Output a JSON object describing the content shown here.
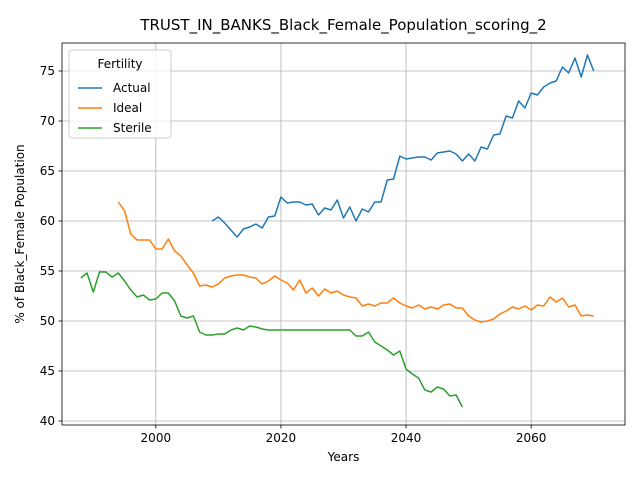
{
  "chart_data": {
    "type": "line",
    "title": "TRUST_IN_BANKS_Black_Female_Population_scoring_2",
    "xlabel": "Years",
    "ylabel": "% of Black_Female Population",
    "xlim": [
      1985,
      2075
    ],
    "ylim": [
      39.6,
      77.8
    ],
    "xticks": [
      2000,
      2020,
      2040,
      2060
    ],
    "yticks": [
      40,
      45,
      50,
      55,
      60,
      65,
      70,
      75
    ],
    "grid": true,
    "legend": {
      "title": "Fertility",
      "placement": "top-left"
    },
    "series": [
      {
        "name": "Actual",
        "color": "#1f77b4",
        "x": [
          2009,
          2010,
          2011,
          2012,
          2013,
          2014,
          2015,
          2016,
          2017,
          2018,
          2019,
          2020,
          2021,
          2022,
          2023,
          2024,
          2025,
          2026,
          2027,
          2028,
          2029,
          2030,
          2031,
          2032,
          2033,
          2034,
          2035,
          2036,
          2037,
          2038,
          2039,
          2040,
          2041,
          2042,
          2043,
          2044,
          2045,
          2046,
          2047,
          2048,
          2049,
          2050,
          2051,
          2052,
          2053,
          2054,
          2055,
          2056,
          2057,
          2058,
          2059,
          2060,
          2061,
          2062,
          2063,
          2064,
          2065,
          2066,
          2067,
          2068,
          2069,
          2070
        ],
        "y": [
          60.0,
          60.4,
          59.8,
          59.1,
          58.4,
          59.2,
          59.4,
          59.7,
          59.3,
          60.4,
          60.5,
          62.4,
          61.8,
          61.9,
          61.9,
          61.6,
          61.7,
          60.6,
          61.3,
          61.1,
          62.1,
          60.3,
          61.4,
          60.0,
          61.2,
          60.9,
          61.9,
          61.9,
          64.1,
          64.2,
          66.5,
          66.2,
          66.3,
          66.4,
          66.4,
          66.1,
          66.8,
          66.9,
          67.0,
          66.7,
          66.0,
          66.7,
          66.0,
          67.4,
          67.2,
          68.6,
          68.7,
          70.5,
          70.3,
          72.0,
          71.3,
          72.8,
          72.6,
          73.4,
          73.8,
          74.0,
          75.4,
          74.8,
          76.3,
          74.4,
          76.6,
          75.0
        ]
      },
      {
        "name": "Ideal",
        "color": "#ff7f0e",
        "x": [
          1994,
          1995,
          1996,
          1997,
          1998,
          1999,
          2000,
          2001,
          2002,
          2003,
          2004,
          2005,
          2006,
          2007,
          2008,
          2009,
          2010,
          2011,
          2012,
          2013,
          2014,
          2015,
          2016,
          2017,
          2018,
          2019,
          2020,
          2021,
          2022,
          2023,
          2024,
          2025,
          2026,
          2027,
          2028,
          2029,
          2030,
          2031,
          2032,
          2033,
          2034,
          2035,
          2036,
          2037,
          2038,
          2039,
          2040,
          2041,
          2042,
          2043,
          2044,
          2045,
          2046,
          2047,
          2048,
          2049,
          2050,
          2051,
          2052,
          2053,
          2054,
          2055,
          2056,
          2057,
          2058,
          2059,
          2060,
          2061,
          2062,
          2063,
          2064,
          2065,
          2066,
          2067,
          2068,
          2069,
          2070
        ],
        "y": [
          61.9,
          61.0,
          58.7,
          58.1,
          58.1,
          58.1,
          57.2,
          57.2,
          58.2,
          57.0,
          56.5,
          55.6,
          54.8,
          53.5,
          53.6,
          53.4,
          53.7,
          54.3,
          54.5,
          54.6,
          54.6,
          54.4,
          54.3,
          53.7,
          54.0,
          54.5,
          54.1,
          53.8,
          53.1,
          54.1,
          52.8,
          53.3,
          52.5,
          53.2,
          52.8,
          53.0,
          52.6,
          52.4,
          52.3,
          51.5,
          51.7,
          51.5,
          51.8,
          51.8,
          52.3,
          51.8,
          51.5,
          51.3,
          51.6,
          51.2,
          51.4,
          51.2,
          51.6,
          51.7,
          51.3,
          51.3,
          50.5,
          50.1,
          49.9,
          50.0,
          50.2,
          50.7,
          51.0,
          51.4,
          51.2,
          51.5,
          51.1,
          51.6,
          51.5,
          52.4,
          51.9,
          52.3,
          51.4,
          51.6,
          50.5,
          50.6,
          50.5
        ]
      },
      {
        "name": "Sterile",
        "color": "#2ca02c",
        "x": [
          1988,
          1989,
          1990,
          1991,
          1992,
          1993,
          1994,
          1995,
          1996,
          1997,
          1998,
          1999,
          2000,
          2001,
          2002,
          2003,
          2004,
          2005,
          2006,
          2007,
          2008,
          2009,
          2010,
          2011,
          2012,
          2013,
          2014,
          2015,
          2016,
          2017,
          2018,
          2019,
          2020,
          2021,
          2022,
          2023,
          2024,
          2025,
          2026,
          2027,
          2028,
          2029,
          2030,
          2031,
          2032,
          2033,
          2034,
          2035,
          2036,
          2037,
          2038,
          2039,
          2040,
          2041,
          2042,
          2043,
          2044,
          2045,
          2046,
          2047,
          2048,
          2049
        ],
        "y": [
          54.3,
          54.8,
          52.9,
          54.9,
          54.9,
          54.4,
          54.8,
          54.0,
          53.1,
          52.4,
          52.6,
          52.1,
          52.2,
          52.8,
          52.8,
          52.0,
          50.5,
          50.3,
          50.5,
          48.9,
          48.6,
          48.6,
          48.7,
          48.7,
          49.1,
          49.3,
          49.1,
          49.5,
          49.4,
          49.2,
          49.1,
          49.1,
          49.1,
          49.1,
          49.1,
          49.1,
          49.1,
          49.1,
          49.1,
          49.1,
          49.1,
          49.1,
          49.1,
          49.1,
          48.5,
          48.5,
          48.9,
          47.9,
          47.5,
          47.1,
          46.6,
          47.0,
          45.2,
          44.7,
          44.3,
          43.1,
          42.9,
          43.4,
          43.2,
          42.5,
          42.6,
          41.4
        ]
      }
    ]
  }
}
